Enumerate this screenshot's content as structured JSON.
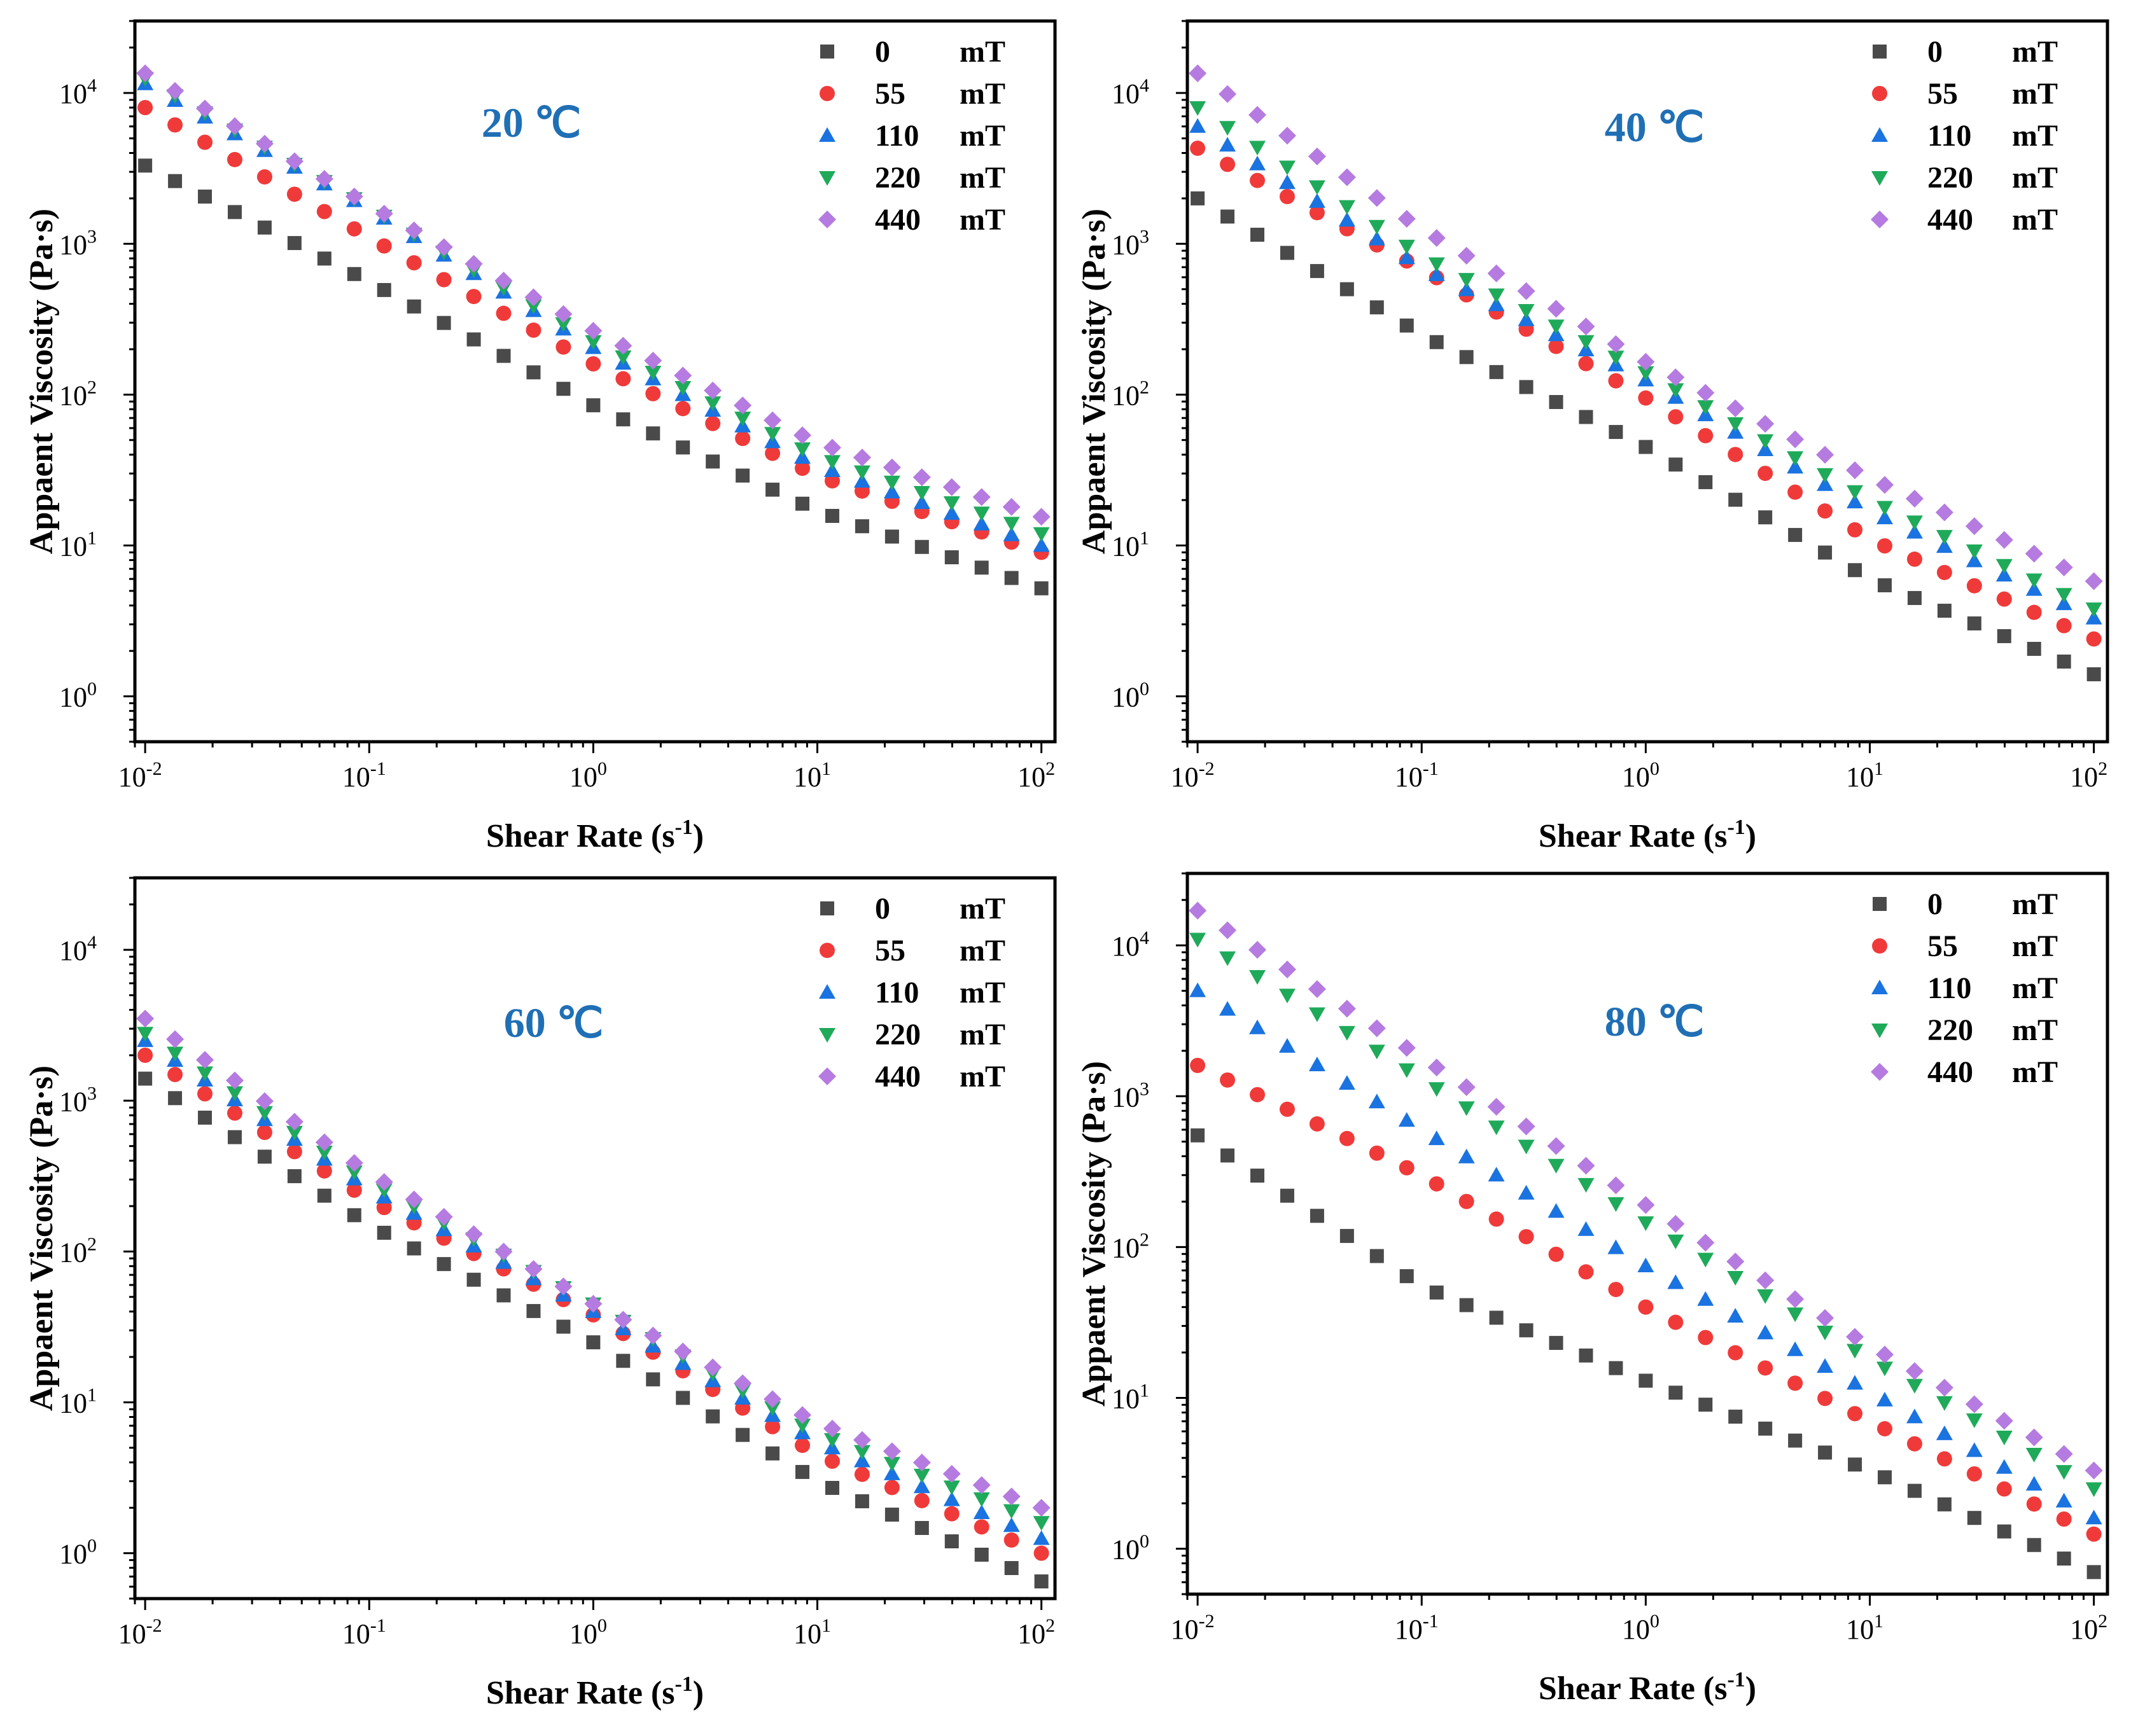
{
  "figure": {
    "series_styles": [
      {
        "field": "0",
        "unit": "mT",
        "marker": "square",
        "color": "#4a4a4a"
      },
      {
        "field": "55",
        "unit": "mT",
        "marker": "circle",
        "color": "#f03a3a"
      },
      {
        "field": "110",
        "unit": "mT",
        "marker": "triangle-up",
        "color": "#1a73e0"
      },
      {
        "field": "220",
        "unit": "mT",
        "marker": "triangle-down",
        "color": "#1faa5a"
      },
      {
        "field": "440",
        "unit": "mT",
        "marker": "diamond",
        "color": "#b57be0"
      }
    ],
    "x_tick_labels": [
      "10-2",
      "10-1",
      "100",
      "101",
      "102"
    ],
    "y_tick_labels": [
      "100",
      "101",
      "102",
      "103",
      "104"
    ]
  },
  "chart_data": [
    {
      "type": "scatter",
      "title": "20 ℃",
      "xlabel": "Shear Rate (s-1)",
      "ylabel": "Appaent Viscosity (Pa·s)",
      "xscale": "log",
      "yscale": "log",
      "xlim": [
        0.009,
        115
      ],
      "ylim": [
        0.5,
        30000
      ],
      "x_range": [
        0.01,
        100
      ],
      "points_per_series": 31,
      "legend_position": "top-right",
      "series": [
        {
          "name": "0 mT",
          "anchors": [
            [
              0.01,
              3300
            ],
            [
              0.1,
              560
            ],
            [
              1,
              85
            ],
            [
              10,
              17
            ],
            [
              100,
              5.2
            ]
          ]
        },
        {
          "name": "55 mT",
          "anchors": [
            [
              0.01,
              8000
            ],
            [
              0.1,
              1100
            ],
            [
              1,
              160
            ],
            [
              10,
              29
            ],
            [
              100,
              9
            ]
          ]
        },
        {
          "name": "110 mT",
          "anchors": [
            [
              0.01,
              11500
            ],
            [
              0.1,
              1700
            ],
            [
              1,
              205
            ],
            [
              10,
              34
            ],
            [
              100,
              10
            ]
          ]
        },
        {
          "name": "220 mT",
          "anchors": [
            [
              0.01,
              12500
            ],
            [
              0.1,
              1750
            ],
            [
              1,
              225
            ],
            [
              10,
              39
            ],
            [
              100,
              12
            ]
          ]
        },
        {
          "name": "440 mT",
          "anchors": [
            [
              0.01,
              13500
            ],
            [
              0.1,
              1800
            ],
            [
              1,
              265
            ],
            [
              10,
              48
            ],
            [
              100,
              15.5
            ]
          ]
        }
      ]
    },
    {
      "type": "scatter",
      "title": "40 ℃",
      "xlabel": "Shear Rate (s-1)",
      "ylabel": "Appaent Viscosity (Pa·s)",
      "xscale": "log",
      "yscale": "log",
      "xlim": [
        0.009,
        115
      ],
      "ylim": [
        0.5,
        30000
      ],
      "x_range": [
        0.01,
        100
      ],
      "points_per_series": 31,
      "legend_position": "top-right",
      "series": [
        {
          "name": "0 mT",
          "anchors": [
            [
              0.01,
              2000
            ],
            [
              0.1,
              250
            ],
            [
              1,
              45
            ],
            [
              10,
              6
            ],
            [
              100,
              1.4
            ]
          ]
        },
        {
          "name": "55 mT",
          "anchors": [
            [
              0.01,
              4300
            ],
            [
              0.1,
              680
            ],
            [
              1,
              95
            ],
            [
              10,
              11
            ],
            [
              100,
              2.4
            ]
          ]
        },
        {
          "name": "110 mT",
          "anchors": [
            [
              0.01,
              6000
            ],
            [
              0.1,
              700
            ],
            [
              1,
              125
            ],
            [
              10,
              17
            ],
            [
              100,
              3.3
            ]
          ]
        },
        {
          "name": "220 mT",
          "anchors": [
            [
              0.01,
              8000
            ],
            [
              0.1,
              830
            ],
            [
              1,
              140
            ],
            [
              10,
              20
            ],
            [
              100,
              3.8
            ]
          ]
        },
        {
          "name": "440 mT",
          "anchors": [
            [
              0.01,
              13500
            ],
            [
              0.1,
              1250
            ],
            [
              1,
              165
            ],
            [
              10,
              28
            ],
            [
              100,
              5.8
            ]
          ]
        }
      ]
    },
    {
      "type": "scatter",
      "title": "60 ℃",
      "xlabel": "Shear Rate (s-1)",
      "ylabel": "Appaent Viscosity (Pa·s)",
      "xscale": "log",
      "yscale": "log",
      "xlim": [
        0.009,
        115
      ],
      "ylim": [
        0.5,
        30000
      ],
      "x_range": [
        0.01,
        100
      ],
      "points_per_series": 31,
      "legend_position": "top-right",
      "series": [
        {
          "name": "0 mT",
          "anchors": [
            [
              0.01,
              1400
            ],
            [
              0.1,
              150
            ],
            [
              1,
              25
            ],
            [
              10,
              3
            ],
            [
              100,
              0.65
            ]
          ]
        },
        {
          "name": "55 mT",
          "anchors": [
            [
              0.01,
              2000
            ],
            [
              0.1,
              220
            ],
            [
              1,
              38
            ],
            [
              10,
              4.5
            ],
            [
              100,
              1.0
            ]
          ]
        },
        {
          "name": "110 mT",
          "anchors": [
            [
              0.01,
              2500
            ],
            [
              0.1,
              260
            ],
            [
              1,
              40
            ],
            [
              10,
              5.5
            ],
            [
              100,
              1.25
            ]
          ]
        },
        {
          "name": "220 mT",
          "anchors": [
            [
              0.01,
              2800
            ],
            [
              0.1,
              290
            ],
            [
              1,
              45
            ],
            [
              10,
              6.2
            ],
            [
              100,
              1.6
            ]
          ]
        },
        {
          "name": "440 mT",
          "anchors": [
            [
              0.01,
              3500
            ],
            [
              0.1,
              330
            ],
            [
              1,
              45
            ],
            [
              10,
              7.3
            ],
            [
              100,
              2.0
            ]
          ]
        }
      ]
    },
    {
      "type": "scatter",
      "title": "80 ℃",
      "xlabel": "Shear Rate (s-1)",
      "ylabel": "Appaent Viscosity (Pa·s)",
      "xscale": "log",
      "yscale": "log",
      "xlim": [
        0.009,
        115
      ],
      "ylim": [
        0.5,
        30000
      ],
      "x_range": [
        0.01,
        100
      ],
      "points_per_series": 31,
      "legend_position": "top-right",
      "series": [
        {
          "name": "0 mT",
          "anchors": [
            [
              0.01,
              550
            ],
            [
              0.1,
              55
            ],
            [
              1,
              13
            ],
            [
              10,
              3.3
            ],
            [
              100,
              0.7
            ]
          ]
        },
        {
          "name": "55 mT",
          "anchors": [
            [
              0.01,
              1600
            ],
            [
              0.1,
              300
            ],
            [
              1,
              40
            ],
            [
              10,
              7
            ],
            [
              100,
              1.25
            ]
          ]
        },
        {
          "name": "110 mT",
          "anchors": [
            [
              0.01,
              5000
            ],
            [
              0.1,
              600
            ],
            [
              1,
              75
            ],
            [
              10,
              11
            ],
            [
              100,
              1.6
            ]
          ]
        },
        {
          "name": "220 mT",
          "anchors": [
            [
              0.01,
              11000
            ],
            [
              0.1,
              1300
            ],
            [
              1,
              145
            ],
            [
              10,
              18
            ],
            [
              100,
              2.5
            ]
          ]
        },
        {
          "name": "440 mT",
          "anchors": [
            [
              0.01,
              17000
            ],
            [
              0.1,
              1800
            ],
            [
              1,
              190
            ],
            [
              10,
              22
            ],
            [
              100,
              3.3
            ]
          ]
        }
      ]
    }
  ]
}
